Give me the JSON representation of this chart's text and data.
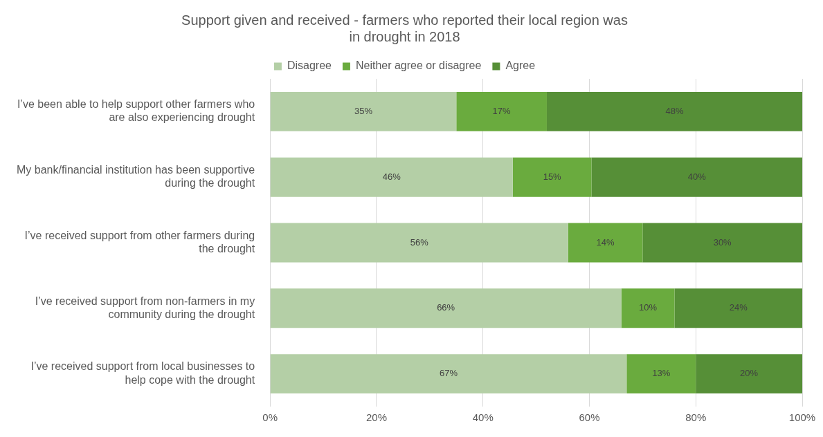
{
  "chart_data": {
    "type": "bar",
    "orientation": "horizontal",
    "stacked": true,
    "title": "Support given and received - farmers who reported their local region was in drought in 2018",
    "categories": [
      "I’ve been able to help support other farmers who are also experiencing drought",
      "My bank/financial institution has been supportive during the drought",
      "I’ve received support from other farmers during the drought",
      "I’ve received support from non-farmers in my community during the drought",
      "I’ve received support from local businesses to help cope with the drought"
    ],
    "series": [
      {
        "name": "Disagree",
        "color": "#b4cfa6",
        "values": [
          35,
          45.6,
          56,
          66,
          67
        ],
        "value_labels": [
          "35%",
          "46%",
          "56%",
          "66%",
          "67%"
        ]
      },
      {
        "name": "Neither agree or disagree",
        "color": "#6aab3e",
        "values": [
          17,
          14.8,
          14,
          10,
          13
        ],
        "value_labels": [
          "17%",
          "15%",
          "14%",
          "10%",
          "13%"
        ]
      },
      {
        "name": "Agree",
        "color": "#568f37",
        "values": [
          48,
          39.6,
          30,
          24,
          20
        ],
        "value_labels": [
          "48%",
          "40%",
          "30%",
          "24%",
          "20%"
        ]
      }
    ],
    "xlim": [
      0,
      100
    ],
    "xticks": [
      {
        "value": 0,
        "label": "0%"
      },
      {
        "value": 20,
        "label": "20%"
      },
      {
        "value": 40,
        "label": "40%"
      },
      {
        "value": 60,
        "label": "60%"
      },
      {
        "value": 80,
        "label": "80%"
      },
      {
        "value": 100,
        "label": "100%"
      }
    ],
    "grid": "x",
    "legend": "top"
  }
}
